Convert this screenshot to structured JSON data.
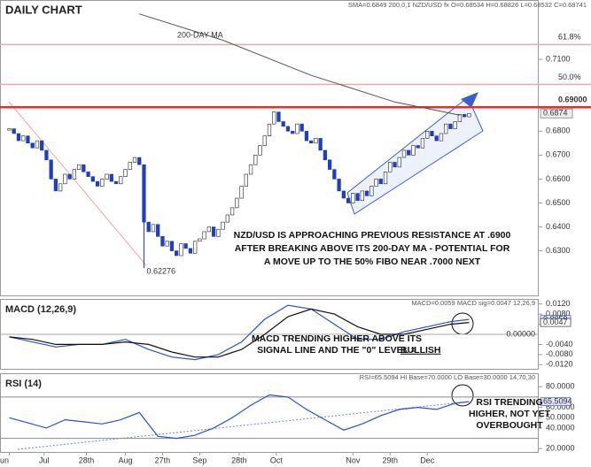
{
  "chart_data": [
    {
      "type": "candlestick",
      "title": "DAILY CHART",
      "info": "SMA=0.6849 200,0,1  NZD/USD fx O=0.68534 H=0.68826 L=0.68532 C=0.68741",
      "xlim": [
        -2,
        114
      ],
      "ylim": [
        0.611,
        0.7348
      ],
      "yticks": [
        {
          "value": 0.63,
          "label": "0.6300"
        },
        {
          "value": 0.64,
          "label": "0.6400"
        },
        {
          "value": 0.65,
          "label": "0.6500"
        },
        {
          "value": 0.66,
          "label": "0.6600"
        },
        {
          "value": 0.67,
          "label": "0.6700"
        },
        {
          "value": 0.68,
          "label": "0.6800"
        },
        {
          "value": 0.71,
          "label": "0.7100"
        }
      ],
      "values": [
        0.681,
        0.679,
        0.676,
        0.678,
        0.675,
        0.673,
        0.676,
        0.672,
        0.668,
        0.66,
        0.655,
        0.658,
        0.662,
        0.66,
        0.664,
        0.666,
        0.663,
        0.661,
        0.659,
        0.657,
        0.66,
        0.662,
        0.659,
        0.658,
        0.661,
        0.664,
        0.667,
        0.669,
        0.666,
        0.642,
        0.638,
        0.641,
        0.636,
        0.632,
        0.634,
        0.63,
        0.628,
        0.633,
        0.631,
        0.629,
        0.634,
        0.635,
        0.638,
        0.64,
        0.636,
        0.639,
        0.642,
        0.645,
        0.648,
        0.652,
        0.657,
        0.662,
        0.666,
        0.67,
        0.674,
        0.678,
        0.683,
        0.688,
        0.684,
        0.682,
        0.68,
        0.679,
        0.683,
        0.68,
        0.676,
        0.675,
        0.677,
        0.672,
        0.668,
        0.664,
        0.66,
        0.655,
        0.652,
        0.65,
        0.654,
        0.651,
        0.655,
        0.653,
        0.657,
        0.66,
        0.658,
        0.663,
        0.667,
        0.665,
        0.669,
        0.672,
        0.67,
        0.674,
        0.673,
        0.677,
        0.68,
        0.678,
        0.676,
        0.679,
        0.683,
        0.681,
        0.684,
        0.687,
        0.686,
        0.6874
      ],
      "up_color": "#ffffff",
      "down_color": "#1f3fbf",
      "last_label": "0.6874",
      "low": {
        "index": 29,
        "value": 0.62276,
        "label": "0.62276"
      },
      "levels": [
        {
          "label": "61.8%",
          "value": 0.7162,
          "color": "#f2a5a5"
        },
        {
          "label": "50.0%",
          "value": 0.6995,
          "color": "#f2a5a5"
        },
        {
          "label": "0.69000",
          "value": 0.69,
          "color": "#e03030"
        }
      ],
      "series": [
        {
          "name": "200-DAY MA",
          "color": "#555555",
          "x": [
            28,
            46,
            65,
            83,
            97
          ],
          "values": [
            0.729,
            0.718,
            0.7033,
            0.6922,
            0.6867
          ]
        }
      ],
      "annotation": [
        "NZD/USD IS APPROACHING PREVIOUS RESISTANCE AT .6900",
        "AFTER BREAKING ABOVE ITS 200-DAY MA - POTENTIAL FOR",
        "A MOVE UP TO THE 50% FIBO NEAR .7000 NEXT"
      ]
    },
    {
      "type": "line",
      "title": "MACD (12,26,9)",
      "info": "MACD=0.0059 MACD sig=0.0047 12,26,9",
      "xlim": [
        -2,
        114
      ],
      "ylim": [
        -0.014,
        0.014
      ],
      "yticks": [
        {
          "value": 0.012,
          "label": "0.0120"
        },
        {
          "value": 0.008,
          "label": "0.0080"
        },
        {
          "value": 0.004,
          "label": "0.0040"
        },
        {
          "value": -0.004,
          "label": "-0.0040"
        },
        {
          "value": -0.008,
          "label": "-0.0080"
        },
        {
          "value": -0.012,
          "label": "-0.0120"
        }
      ],
      "zero": {
        "value": 0,
        "label": "0.00000"
      },
      "tags": [
        "0.0059",
        "0.0047"
      ],
      "series": [
        {
          "name": "MACD",
          "color": "#2b4fd6",
          "x": [
            0,
            5,
            10,
            15,
            20,
            25,
            30,
            35,
            40,
            45,
            50,
            55,
            60,
            65,
            70,
            75,
            80,
            85,
            90,
            95,
            99
          ],
          "values": [
            -0.001,
            -0.003,
            -0.005,
            -0.004,
            -0.004,
            -0.002,
            -0.006,
            -0.009,
            -0.01,
            -0.008,
            -0.003,
            0.006,
            0.0115,
            0.01,
            0.004,
            -0.002,
            -0.002,
            0.001,
            0.003,
            0.005,
            0.0059
          ]
        },
        {
          "name": "MACD sig",
          "color": "#111111",
          "x": [
            0,
            5,
            10,
            15,
            20,
            25,
            30,
            35,
            40,
            45,
            50,
            55,
            60,
            65,
            70,
            75,
            80,
            85,
            90,
            95,
            99
          ],
          "values": [
            -0.001,
            -0.002,
            -0.004,
            -0.004,
            -0.004,
            -0.003,
            -0.004,
            -0.007,
            -0.009,
            -0.009,
            -0.006,
            0.0,
            0.007,
            0.01,
            0.008,
            0.003,
            0.0,
            0.0,
            0.002,
            0.004,
            0.0047
          ]
        }
      ],
      "annotation": [
        "MACD TRENDING HIGHER ABOVE ITS",
        "SIGNAL LINE AND THE \"0\" LEVEL = ",
        "BULLISH"
      ]
    },
    {
      "type": "line",
      "title": "RSI (14)",
      "info": "RSI=65.5094 HI Base=70.0000 LO Base=30.0000  14,70,30",
      "xlim": [
        -2,
        114
      ],
      "ylim": [
        16,
        93
      ],
      "yticks": [
        {
          "value": 20,
          "label": "20.0000"
        },
        {
          "value": 40,
          "label": "40.0000"
        },
        {
          "value": 50,
          "label": "50.0000"
        },
        {
          "value": 60,
          "label": "60.0000"
        },
        {
          "value": 80,
          "label": "80.0000"
        }
      ],
      "bases": [
        70,
        30
      ],
      "tags": [
        "65.5094"
      ],
      "series": [
        {
          "name": "RSI",
          "color": "#2b4fd6",
          "x": [
            0,
            4,
            8,
            12,
            16,
            20,
            24,
            28,
            32,
            36,
            40,
            44,
            48,
            52,
            56,
            60,
            64,
            68,
            72,
            76,
            80,
            84,
            88,
            92,
            96,
            99
          ],
          "values": [
            50,
            45,
            40,
            48,
            46,
            44,
            48,
            55,
            32,
            30,
            33,
            40,
            50,
            62,
            72,
            70,
            58,
            48,
            38,
            44,
            52,
            58,
            60,
            58,
            64,
            65.5094
          ]
        }
      ],
      "annotation": [
        "RSI TRENDING",
        "HIGHER, NOT YET",
        "OVERBOUGHT"
      ],
      "xticks": [
        {
          "value": 0,
          "label": "un"
        },
        {
          "value": 7.5,
          "label": "Jul"
        },
        {
          "value": 16.6,
          "label": "28th"
        },
        {
          "value": 25,
          "label": "Aug"
        },
        {
          "value": 33,
          "label": "27th"
        },
        {
          "value": 41,
          "label": "Sep"
        },
        {
          "value": 49.5,
          "label": "28th"
        },
        {
          "value": 57.5,
          "label": "Oct"
        },
        {
          "value": 74,
          "label": "Nov"
        },
        {
          "value": 82,
          "label": "29th"
        },
        {
          "value": 90,
          "label": "Dec"
        }
      ]
    }
  ]
}
